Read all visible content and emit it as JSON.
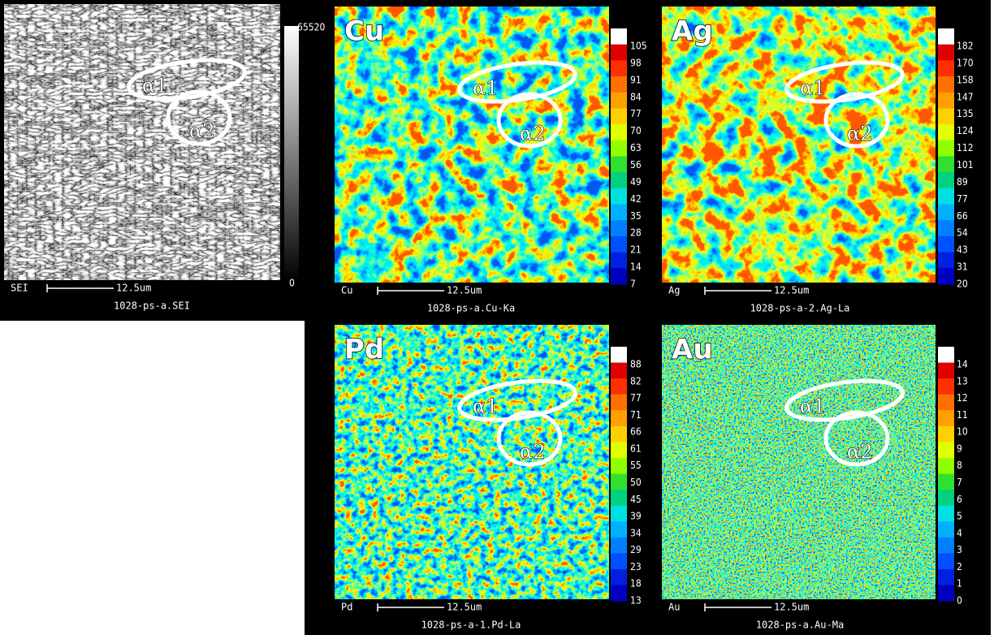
{
  "panels": [
    {
      "scale_label": "SEI",
      "scale_bar": "12.5um",
      "caption": "1028-ps-a.SEI",
      "colorbar_ticks": [
        65520,
        0
      ],
      "annotations": [
        "α1",
        "α2"
      ]
    },
    {
      "element": "Cu",
      "scale_label": "Cu",
      "scale_bar": "12.5um",
      "caption": "1028-ps-a.Cu-Ka",
      "colorbar_ticks": [
        105,
        98,
        91,
        84,
        77,
        70,
        63,
        56,
        49,
        42,
        35,
        28,
        21,
        14,
        7
      ],
      "annotations": [
        "α1",
        "α2"
      ]
    },
    {
      "element": "Ag",
      "scale_label": "Ag",
      "scale_bar": "12.5um",
      "caption": "1028-ps-a-2.Ag-La",
      "colorbar_ticks": [
        182,
        170,
        158,
        147,
        135,
        124,
        112,
        101,
        89,
        77,
        66,
        54,
        43,
        31,
        20
      ],
      "annotations": [
        "α1",
        "α2"
      ]
    },
    {
      "element": "Pd",
      "scale_label": "Pd",
      "scale_bar": "12.5um",
      "caption": "1028-ps-a-1.Pd-La",
      "colorbar_ticks": [
        88,
        82,
        77,
        71,
        66,
        61,
        55,
        50,
        45,
        39,
        34,
        29,
        23,
        18,
        13
      ],
      "annotations": [
        "α1",
        "α2"
      ]
    },
    {
      "element": "Au",
      "scale_label": "Au",
      "scale_bar": "12.5um",
      "caption": "1028-ps-a.Au-Ma",
      "colorbar_ticks": [
        14,
        13,
        12,
        11,
        10,
        9,
        8,
        7,
        6,
        5,
        4,
        3,
        2,
        1,
        0
      ],
      "annotations": [
        "α1",
        "α2"
      ]
    }
  ]
}
